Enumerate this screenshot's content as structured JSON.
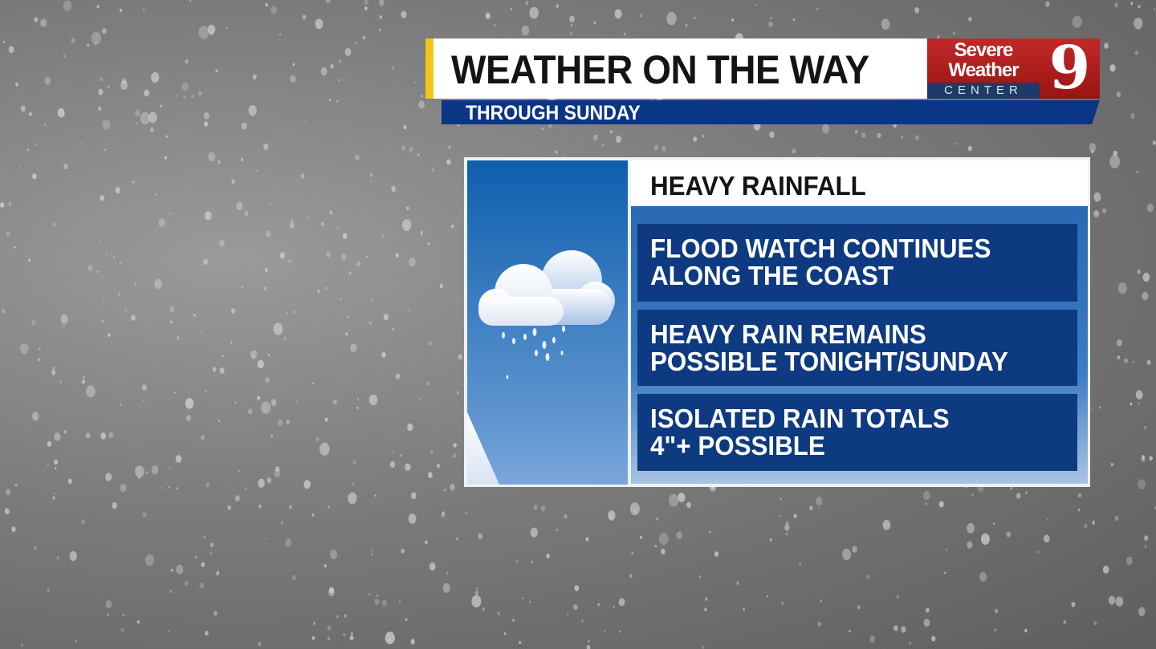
{
  "header": {
    "title": "WEATHER ON THE WAY",
    "subtitle": "THROUGH SUNDAY"
  },
  "logo": {
    "line1": "Severe",
    "line2": "Weather",
    "line3": "CENTER",
    "number": "9"
  },
  "panel": {
    "heading": "HEAVY RAINFALL",
    "icon": "cloud-rain-icon",
    "items": [
      {
        "line1": "FLOOD WATCH CONTINUES",
        "line2": "ALONG THE COAST"
      },
      {
        "line1": "HEAVY RAIN REMAINS",
        "line2": "POSSIBLE TONIGHT/SUNDAY"
      },
      {
        "line1": "ISOLATED RAIN TOTALS",
        "line2": "4\"+ POSSIBLE"
      }
    ]
  },
  "colors": {
    "accent_yellow": "#f2c518",
    "navy": "#0d3a80",
    "logo_red": "#c22828",
    "panel_blue": "#2a69b4"
  }
}
